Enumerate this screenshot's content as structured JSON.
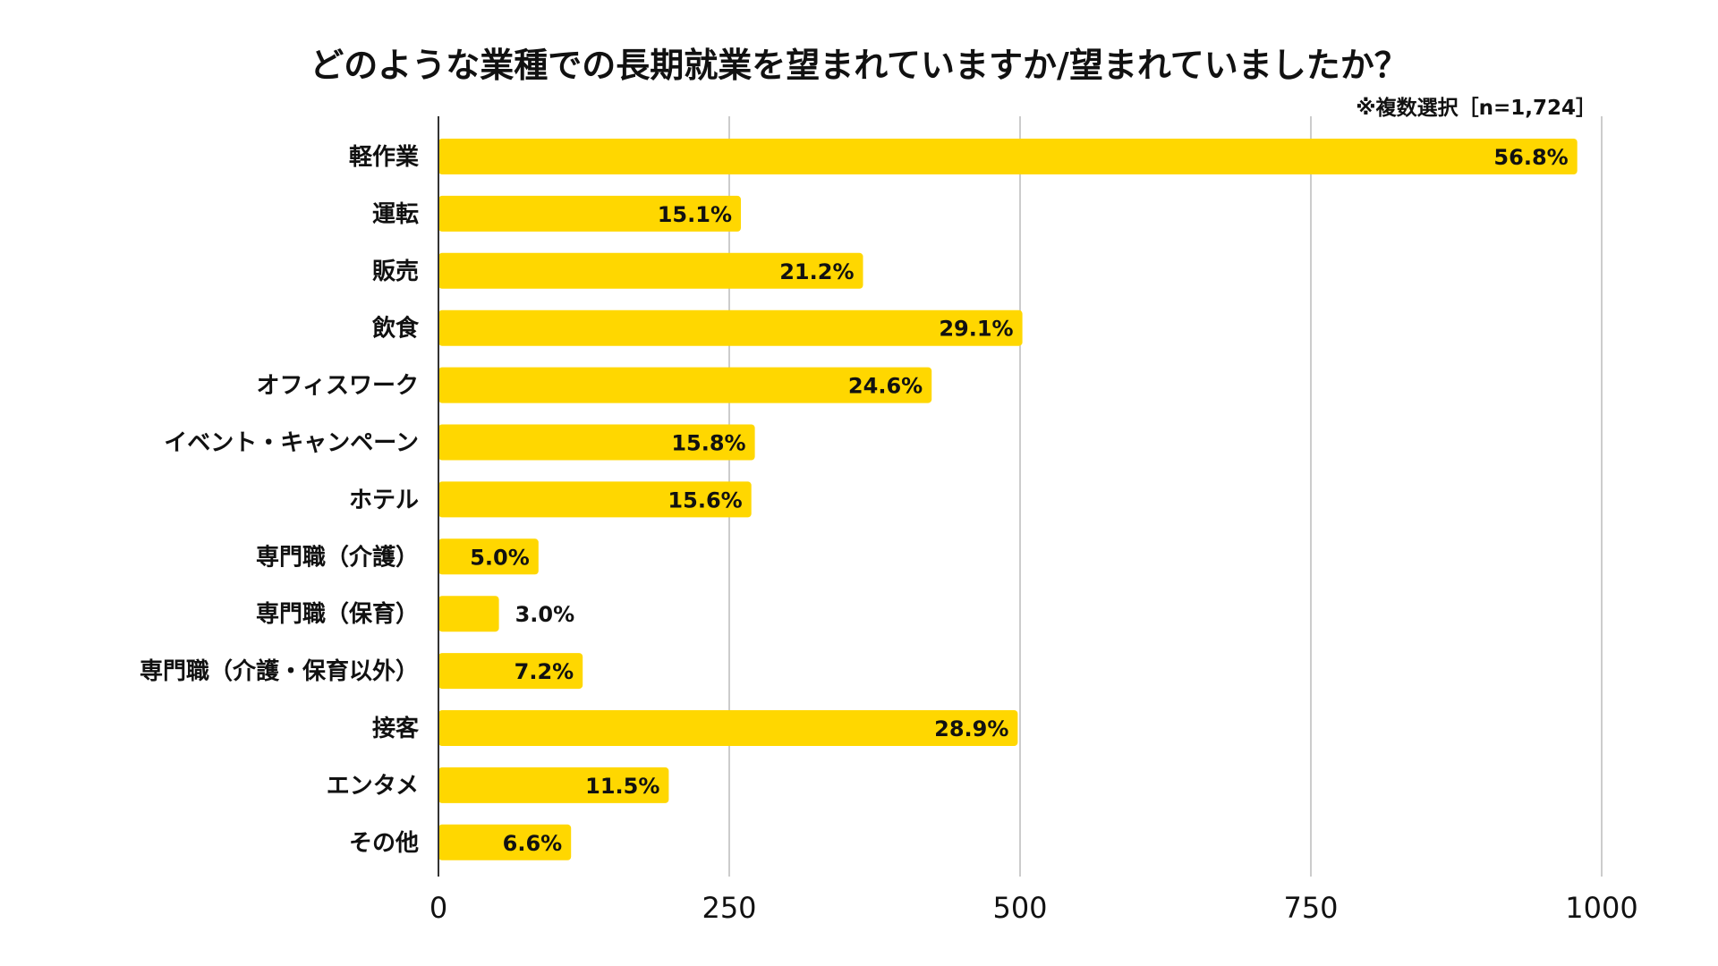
{
  "chart_data": {
    "type": "bar",
    "orientation": "horizontal",
    "title": "どのような業種での長期就業を望まれていますか/望まれていましたか？",
    "note": "※複数選択［n=1,724］",
    "categories": [
      "軽作業",
      "運転",
      "販売",
      "飲食",
      "オフィスワーク",
      "イベント・キャンペーン",
      "ホテル",
      "専門職（介護）",
      "専門職（保育）",
      "専門職（介護・保育以外）",
      "接客",
      "エンタメ",
      "その他"
    ],
    "values": [
      979,
      260,
      365,
      502,
      424,
      272,
      269,
      86,
      52,
      124,
      498,
      198,
      114
    ],
    "value_labels": [
      "56.8%",
      "15.1%",
      "21.2%",
      "29.1%",
      "24.6%",
      "15.8%",
      "15.6%",
      "5.0%",
      "3.0%",
      "7.2%",
      "28.9%",
      "11.5%",
      "6.6%"
    ],
    "xlim": [
      0,
      1000
    ],
    "xticks": [
      0,
      250,
      500,
      750,
      1000
    ],
    "xtick_labels": [
      "0",
      "250",
      "500",
      "750",
      "1000"
    ],
    "xlabel": "",
    "ylabel": "",
    "grid": true,
    "legend": "none",
    "bar_color": "#FFD700"
  }
}
